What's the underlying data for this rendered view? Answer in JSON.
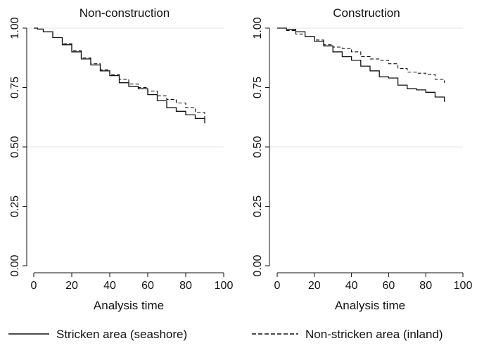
{
  "chart_data": [
    {
      "type": "line",
      "title": "Non-construction",
      "xlabel": "Analysis time",
      "ylabel": "",
      "xlim": [
        0,
        100
      ],
      "ylim": [
        0,
        1
      ],
      "x_ticks": [
        "0",
        "20",
        "40",
        "60",
        "80",
        "100"
      ],
      "y_ticks": [
        "0.00",
        "0.25",
        "0.50",
        "0.75",
        "1.00"
      ],
      "grid": "horizontal gridlines at 0.5 and 1.0",
      "series": [
        {
          "name": "Stricken area (seashore)",
          "style": "solid",
          "x": [
            0,
            2,
            5,
            10,
            15,
            20,
            25,
            30,
            35,
            40,
            45,
            50,
            55,
            60,
            65,
            70,
            75,
            80,
            85,
            90
          ],
          "y": [
            1.0,
            0.996,
            0.985,
            0.96,
            0.93,
            0.9,
            0.87,
            0.845,
            0.82,
            0.8,
            0.77,
            0.755,
            0.745,
            0.72,
            0.695,
            0.665,
            0.65,
            0.635,
            0.62,
            0.6
          ]
        },
        {
          "name": "Non-stricken area (inland)",
          "style": "dashed",
          "x": [
            0,
            2,
            5,
            10,
            15,
            20,
            25,
            30,
            35,
            40,
            45,
            50,
            55,
            60,
            65,
            70,
            75,
            80,
            85,
            90
          ],
          "y": [
            1.0,
            0.996,
            0.985,
            0.96,
            0.935,
            0.905,
            0.875,
            0.85,
            0.825,
            0.805,
            0.785,
            0.765,
            0.75,
            0.735,
            0.715,
            0.7,
            0.685,
            0.665,
            0.645,
            0.615
          ]
        }
      ]
    },
    {
      "type": "line",
      "title": "Construction",
      "xlabel": "Analysis time",
      "ylabel": "",
      "xlim": [
        0,
        100
      ],
      "ylim": [
        0,
        1
      ],
      "x_ticks": [
        "0",
        "20",
        "40",
        "60",
        "80",
        "100"
      ],
      "y_ticks": [
        "0.00",
        "0.25",
        "0.50",
        "0.75",
        "1.00"
      ],
      "grid": "horizontal gridlines at 0.5 and 1.0",
      "series": [
        {
          "name": "Stricken area (seashore)",
          "style": "solid",
          "x": [
            0,
            5,
            10,
            15,
            20,
            25,
            30,
            35,
            40,
            45,
            50,
            55,
            60,
            65,
            70,
            75,
            80,
            85,
            90
          ],
          "y": [
            1.0,
            0.995,
            0.985,
            0.965,
            0.945,
            0.925,
            0.9,
            0.88,
            0.865,
            0.84,
            0.82,
            0.795,
            0.79,
            0.76,
            0.745,
            0.74,
            0.73,
            0.71,
            0.69
          ]
        },
        {
          "name": "Non-stricken area (inland)",
          "style": "dashed",
          "x": [
            0,
            5,
            10,
            15,
            20,
            25,
            30,
            35,
            40,
            45,
            50,
            55,
            60,
            65,
            70,
            75,
            80,
            85,
            90
          ],
          "y": [
            1.0,
            0.99,
            0.975,
            0.965,
            0.95,
            0.93,
            0.92,
            0.915,
            0.9,
            0.88,
            0.87,
            0.865,
            0.85,
            0.83,
            0.815,
            0.81,
            0.805,
            0.785,
            0.77
          ]
        }
      ]
    }
  ],
  "legend": {
    "position": "bottom",
    "entries": [
      {
        "label": "Stricken area (seashore)",
        "style": "solid"
      },
      {
        "label": "Non-stricken area (inland)",
        "style": "dashed"
      }
    ]
  },
  "colors": {
    "line": "#111111",
    "grid": "#e6e6e6",
    "axis": "#111111"
  }
}
